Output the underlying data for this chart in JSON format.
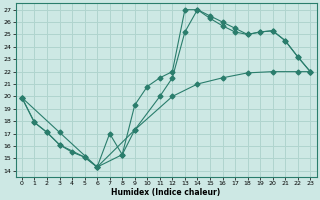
{
  "xlabel": "Humidex (Indice chaleur)",
  "xlim": [
    -0.5,
    23.5
  ],
  "ylim": [
    13.5,
    27.5
  ],
  "xticks": [
    0,
    1,
    2,
    3,
    4,
    5,
    6,
    7,
    8,
    9,
    10,
    11,
    12,
    13,
    14,
    15,
    16,
    17,
    18,
    19,
    20,
    21,
    22,
    23
  ],
  "yticks": [
    14,
    15,
    16,
    17,
    18,
    19,
    20,
    21,
    22,
    23,
    24,
    25,
    26,
    27
  ],
  "line_color": "#2a7d6c",
  "bg_color": "#cde8e4",
  "grid_color": "#b0d4ce",
  "markersize": 2.5,
  "curve1": [
    [
      0,
      19.9
    ],
    [
      1,
      17.9
    ],
    [
      2,
      17.1
    ],
    [
      3,
      16.1
    ],
    [
      4,
      15.5
    ],
    [
      5,
      15.1
    ],
    [
      6,
      14.3
    ],
    [
      7,
      17.0
    ],
    [
      8,
      15.3
    ],
    [
      9,
      19.3
    ],
    [
      10,
      20.8
    ],
    [
      11,
      21.5
    ],
    [
      12,
      22.0
    ],
    [
      13,
      27.0
    ],
    [
      14,
      27.0
    ],
    [
      15,
      26.5
    ],
    [
      16,
      26.0
    ],
    [
      17,
      25.5
    ],
    [
      18,
      25.0
    ],
    [
      19,
      25.2
    ],
    [
      20,
      25.3
    ],
    [
      21,
      24.5
    ],
    [
      22,
      23.2
    ],
    [
      23,
      22.0
    ]
  ],
  "curve2": [
    [
      0,
      19.9
    ],
    [
      1,
      17.9
    ],
    [
      2,
      17.1
    ],
    [
      3,
      16.1
    ],
    [
      5,
      15.1
    ],
    [
      6,
      14.3
    ],
    [
      8,
      15.3
    ],
    [
      9,
      17.3
    ],
    [
      11,
      20.0
    ],
    [
      12,
      21.5
    ],
    [
      13,
      25.2
    ],
    [
      14,
      27.0
    ],
    [
      15,
      26.3
    ],
    [
      16,
      25.7
    ],
    [
      17,
      25.2
    ],
    [
      18,
      25.0
    ],
    [
      19,
      25.2
    ],
    [
      20,
      25.3
    ],
    [
      21,
      24.5
    ],
    [
      22,
      23.2
    ],
    [
      23,
      22.0
    ]
  ],
  "curve3": [
    [
      0,
      19.9
    ],
    [
      3,
      17.1
    ],
    [
      6,
      14.3
    ],
    [
      9,
      17.3
    ],
    [
      12,
      20.0
    ],
    [
      14,
      21.0
    ],
    [
      16,
      21.5
    ],
    [
      18,
      21.9
    ],
    [
      20,
      22.0
    ],
    [
      22,
      22.0
    ],
    [
      23,
      22.0
    ]
  ]
}
